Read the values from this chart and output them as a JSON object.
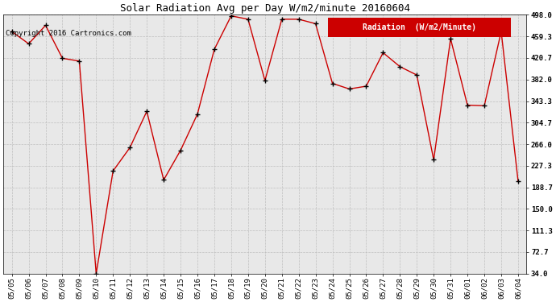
{
  "title": "Solar Radiation Avg per Day W/m2/minute 20160604",
  "copyright": "Copyright 2016 Cartronics.com",
  "legend_label": "Radiation  (W/m2/Minute)",
  "dates": [
    "05/05",
    "05/06",
    "05/07",
    "05/08",
    "05/09",
    "05/10",
    "05/11",
    "05/12",
    "05/13",
    "05/14",
    "05/15",
    "05/16",
    "05/17",
    "05/18",
    "05/19",
    "05/20",
    "05/21",
    "05/22",
    "05/23",
    "05/24",
    "05/25",
    "05/26",
    "05/27",
    "05/28",
    "05/29",
    "05/30",
    "05/31",
    "06/01",
    "06/02",
    "06/03",
    "06/04"
  ],
  "values": [
    468,
    446,
    479,
    420,
    415,
    34,
    218,
    260,
    325,
    202,
    255,
    320,
    436,
    496,
    490,
    380,
    490,
    490,
    482,
    375,
    365,
    370,
    430,
    405,
    390,
    238,
    455,
    336,
    335,
    468,
    200
  ],
  "line_color": "#cc0000",
  "marker_color": "#000000",
  "bg_color": "#ffffff",
  "plot_bg_color": "#e8e8e8",
  "grid_color": "#bbbbbb",
  "ylim_min": 34.0,
  "ylim_max": 498.0,
  "yticks": [
    34.0,
    72.7,
    111.3,
    150.0,
    188.7,
    227.3,
    266.0,
    304.7,
    343.3,
    382.0,
    420.7,
    459.3,
    498.0
  ],
  "title_fontsize": 9,
  "copyright_fontsize": 6.5,
  "tick_fontsize": 6.5,
  "legend_fontsize": 7,
  "legend_bg_color": "#cc0000",
  "legend_text_color": "#ffffff"
}
